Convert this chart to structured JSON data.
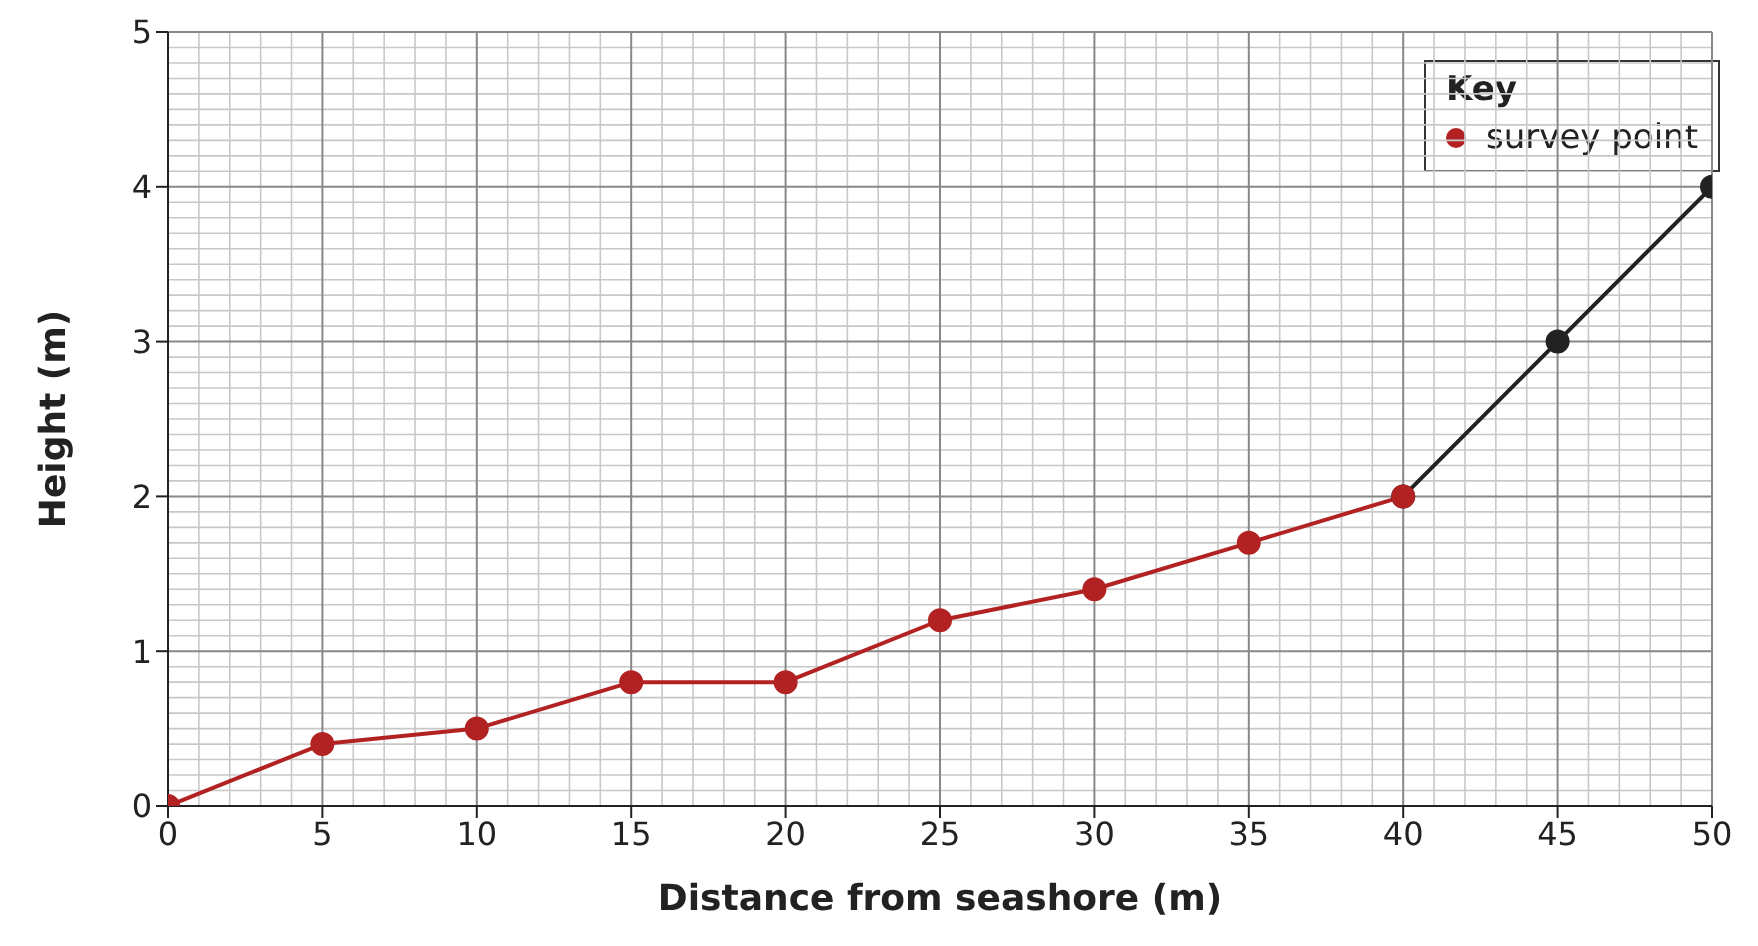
{
  "chart_data": {
    "type": "line",
    "xlabel": "Distance from seashore (m)",
    "ylabel": "Height (m)",
    "legend_title": "Key",
    "legend": "top right",
    "grid": true,
    "marker": "circle",
    "line_style": "solid",
    "xlim": [
      0,
      50
    ],
    "xticks": [
      0,
      5,
      10,
      15,
      20,
      25,
      30,
      35,
      40,
      45,
      50
    ],
    "ylim": [
      0,
      5
    ],
    "yticks": [
      0,
      1,
      2,
      3,
      4,
      5
    ],
    "series": [
      {
        "color": "#222222",
        "x": [
          40,
          45,
          50
        ],
        "values": [
          2,
          3,
          4
        ]
      },
      {
        "name": "survey point",
        "color": "#b22222",
        "x": [
          0,
          5,
          10,
          15,
          20,
          25,
          30,
          35,
          40
        ],
        "values": [
          0,
          0.4,
          0.5,
          0.8,
          0.8,
          1.2,
          1.4,
          1.7,
          2.0
        ]
      }
    ]
  }
}
